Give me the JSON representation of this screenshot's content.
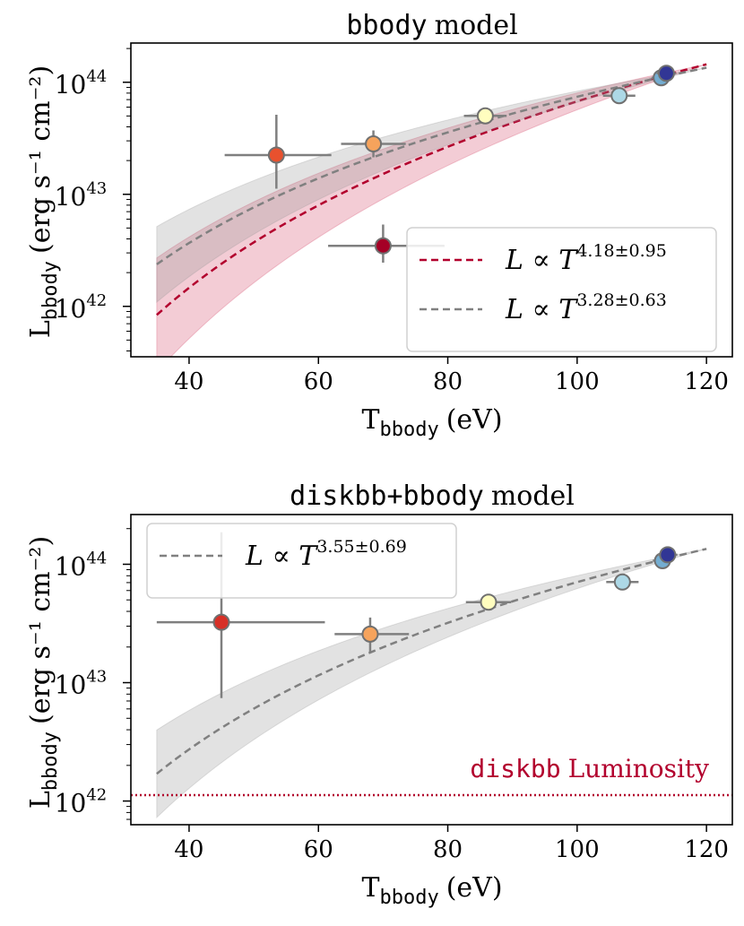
{
  "chart_data": [
    {
      "type": "scatter",
      "title_code": "bbody",
      "title_text": "model",
      "xlabel_main": "T",
      "xlabel_sub": "bbody",
      "xlabel_unit": "(eV)",
      "ylabel_main": "L",
      "ylabel_sub": "bbody",
      "ylabel_unit": "(erg s⁻¹ cm⁻²)",
      "xlim": [
        31,
        124
      ],
      "ylim_log10": [
        41.55,
        44.35
      ],
      "xticks": [
        40,
        60,
        80,
        100,
        120
      ],
      "yticks": [
        {
          "exp": 42,
          "base": "10",
          "sup": "42"
        },
        {
          "exp": 43,
          "base": "10",
          "sup": "43"
        },
        {
          "exp": 44,
          "base": "10",
          "sup": "44"
        }
      ],
      "points": [
        {
          "x": 53.5,
          "xerr": [
            8,
            8.5
          ],
          "y": 43.35,
          "yerr": [
            0.3,
            0.36
          ],
          "color": "#e8512e"
        },
        {
          "x": 68.5,
          "xerr": [
            5,
            5
          ],
          "y": 43.45,
          "yerr": [
            0.12,
            0.12
          ],
          "color": "#f6a35c"
        },
        {
          "x": 70.0,
          "xerr": [
            8.5,
            9.5
          ],
          "y": 42.54,
          "yerr": [
            0.15,
            0.19
          ],
          "color": "#a50026"
        },
        {
          "x": 85.8,
          "xerr": [
            3.3,
            3.3
          ],
          "y": 43.7,
          "yerr": [
            0.05,
            0.05
          ],
          "color": "#fffdbf"
        },
        {
          "x": 106.5,
          "xerr": [
            2.5,
            2.5
          ],
          "y": 43.88,
          "yerr": [
            0.05,
            0.05
          ],
          "color": "#add8e6"
        },
        {
          "x": 113.0,
          "xerr": [
            1.5,
            1.5
          ],
          "y": 44.04,
          "yerr": [
            0.03,
            0.03
          ],
          "color": "#74add1"
        },
        {
          "x": 113.8,
          "xerr": [
            1.5,
            1.5
          ],
          "y": 44.08,
          "yerr": [
            0.03,
            0.03
          ],
          "color": "#313695"
        }
      ],
      "fits": [
        {
          "name": "L ∝ T^4.18±0.95",
          "exponent": 4.18,
          "exp_err": 0.95,
          "y_at_120": 44.16,
          "color": "#b2002d",
          "band": "rgba(199,21,64,0.22)"
        },
        {
          "name": "L ∝ T^3.28±0.63",
          "exponent": 3.28,
          "exp_err": 0.63,
          "y_at_120": 44.13,
          "color": "#808080",
          "band": "rgba(150,150,150,0.28)"
        }
      ],
      "fit_range": [
        35,
        120
      ],
      "legend": [
        {
          "label_base": "L ∝ T",
          "label_sup": "4.18±0.95"
        },
        {
          "label_base": "L ∝ T",
          "label_sup": "3.28±0.63"
        }
      ],
      "legend_loc": "lower-right"
    },
    {
      "type": "scatter",
      "title_code": "diskbb+bbody",
      "title_text": "model",
      "xlabel_main": "T",
      "xlabel_sub": "bbody",
      "xlabel_unit": "(eV)",
      "ylabel_main": "L",
      "ylabel_sub": "bbody",
      "ylabel_unit": "(erg s⁻¹ cm⁻²)",
      "xlim": [
        31,
        124
      ],
      "ylim_log10": [
        41.8,
        44.42
      ],
      "xticks": [
        40,
        60,
        80,
        100,
        120
      ],
      "yticks": [
        {
          "exp": 42,
          "base": "10",
          "sup": "42"
        },
        {
          "exp": 43,
          "base": "10",
          "sup": "43"
        },
        {
          "exp": 44,
          "base": "10",
          "sup": "44"
        }
      ],
      "points": [
        {
          "x": 45.0,
          "xerr": [
            10,
            16
          ],
          "y": 43.51,
          "yerr": [
            0.64,
            0.76
          ],
          "color": "#d73027"
        },
        {
          "x": 68.0,
          "xerr": [
            5.5,
            6
          ],
          "y": 43.41,
          "yerr": [
            0.15,
            0.14
          ],
          "color": "#f6a35c"
        },
        {
          "x": 86.3,
          "xerr": [
            3.5,
            3.5
          ],
          "y": 43.68,
          "yerr": [
            0.05,
            0.05
          ],
          "color": "#fffdbf"
        },
        {
          "x": 107.0,
          "xerr": [
            2.5,
            2.5
          ],
          "y": 43.85,
          "yerr": [
            0.05,
            0.05
          ],
          "color": "#add8e6"
        },
        {
          "x": 113.2,
          "xerr": [
            1.5,
            1.5
          ],
          "y": 44.03,
          "yerr": [
            0.03,
            0.03
          ],
          "color": "#74add1"
        },
        {
          "x": 114.0,
          "xerr": [
            1.5,
            1.5
          ],
          "y": 44.08,
          "yerr": [
            0.03,
            0.03
          ],
          "color": "#313695"
        }
      ],
      "fits": [
        {
          "name": "L ∝ T^3.55±0.69",
          "exponent": 3.55,
          "exp_err": 0.69,
          "y_at_120": 44.13,
          "color": "#808080",
          "band": "rgba(150,150,150,0.28)"
        }
      ],
      "fit_range": [
        35,
        120
      ],
      "legend": [
        {
          "label_base": "L ∝ T",
          "label_sup": "3.55±0.69"
        }
      ],
      "legend_loc": "upper-left",
      "hline": {
        "y": 42.05,
        "color": "#b2002d",
        "label_code": "diskbb",
        "label_text": "Luminosity"
      }
    }
  ]
}
